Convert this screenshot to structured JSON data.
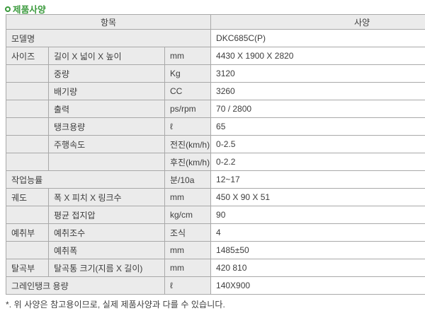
{
  "page": {
    "title": "제품사양",
    "footnote": "*. 위 사양은 참고용이므로, 실제 제품사양과 다를 수 있습니다."
  },
  "colors": {
    "accent_green": "#3a9a3c",
    "cell_gray": "#ebebeb",
    "border_gray": "#a9a9a9",
    "text": "#3d3d3d"
  },
  "table": {
    "header_item": "항목",
    "header_spec": "사양",
    "model": {
      "label": "모델명",
      "value": "DKC685C(P)"
    },
    "rows": [
      {
        "category": "사이즈",
        "item": "길이 X 넓이 X 높이",
        "unit": "mm",
        "value": "4430 X 1900 X 2820"
      },
      {
        "category": "",
        "item": "중량",
        "unit": "Kg",
        "value": "3120"
      },
      {
        "category": "",
        "item": "배기량",
        "unit": "CC",
        "value": "3260"
      },
      {
        "category": "",
        "item": "출력",
        "unit": "ps/rpm",
        "value": "70 / 2800"
      },
      {
        "category": "",
        "item": "탱크용량",
        "unit": "ℓ",
        "value": "65"
      },
      {
        "category": "",
        "item": "주행속도",
        "unit": "전진(km/h)",
        "value": "0-2.5"
      },
      {
        "category": "",
        "item": "",
        "unit": "후진(km/h)",
        "value": "0-2.2"
      },
      {
        "category": "작업능률",
        "item": "",
        "unit": "분/10a",
        "value": "12~17"
      },
      {
        "category": "궤도",
        "item": "폭 X 피치 X 링크수",
        "unit": "mm",
        "value": "450 X 90 X 51"
      },
      {
        "category": "",
        "item": "평균 접지압",
        "unit": "kg/cm",
        "value": "90"
      },
      {
        "category": "예취부",
        "item": "예취조수",
        "unit": "조식",
        "value": "4"
      },
      {
        "category": "",
        "item": "예취폭",
        "unit": "mm",
        "value": "1485±50"
      },
      {
        "category": "탈곡부",
        "item": "탈곡통 크기(지름 X 길이)",
        "unit": "mm",
        "value": "420 810"
      },
      {
        "category": "그레인탱크 용량",
        "item": "",
        "unit": "ℓ",
        "value": "140X900"
      }
    ]
  }
}
